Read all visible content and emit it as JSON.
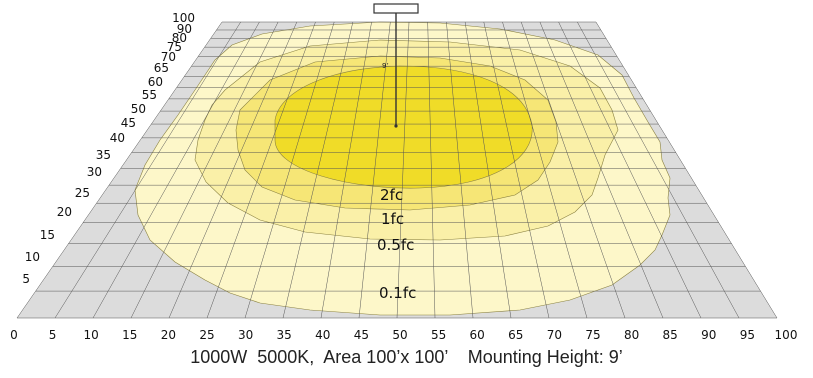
{
  "diagram": {
    "type": "isofootcandle-plot",
    "caption": "1000W  5000K,  Area 100’x 100’    Mounting Height: 9’",
    "height_marker_label": "9’",
    "x_axis_ticks": [
      "0",
      "5",
      "10",
      "15",
      "20",
      "25",
      "30",
      "35",
      "40",
      "45",
      "50",
      "55",
      "60",
      "65",
      "70",
      "75",
      "80",
      "85",
      "90",
      "95",
      "100"
    ],
    "y_axis_ticks": [
      "5",
      "10",
      "15",
      "20",
      "25",
      "30",
      "35",
      "40",
      "45",
      "50",
      "55",
      "60",
      "65",
      "70",
      "75",
      "80",
      "90",
      "100"
    ],
    "contours": [
      {
        "label": "0.1fc",
        "color": "#fdf7c9"
      },
      {
        "label": "0.5fc",
        "color": "#faf0a8"
      },
      {
        "label": "1fc",
        "color": "#f6e676"
      },
      {
        "label": "2fc",
        "color": "#f0dc28"
      }
    ],
    "colors": {
      "floor": "#dcdcdc",
      "grid": "#555555",
      "fixture": "#ffffff"
    }
  }
}
